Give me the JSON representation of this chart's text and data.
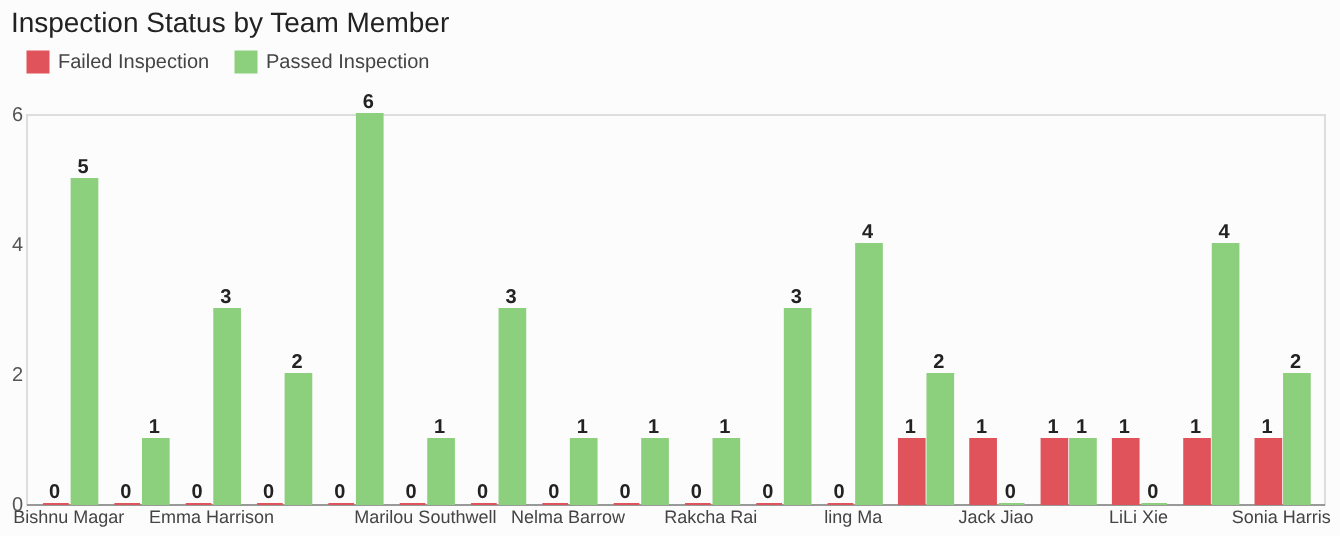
{
  "chart_data": {
    "type": "bar",
    "title": "Inspection Status by Team Member",
    "categories": [
      "Bishnu Magar",
      null,
      "Emma Harrison",
      null,
      null,
      "Marilou Southwell",
      null,
      "Nelma Barrow",
      null,
      "Rakcha Rai",
      null,
      "ling Ma",
      null,
      "Jack Jiao",
      null,
      "LiLi Xie",
      null,
      "Sonia Harris"
    ],
    "series": [
      {
        "name": "Failed Inspection",
        "color": "#e0535b",
        "values": [
          0,
          0,
          0,
          0,
          0,
          0,
          0,
          0,
          0,
          0,
          0,
          0,
          1,
          1,
          1,
          1,
          1,
          1
        ]
      },
      {
        "name": "Passed Inspection",
        "color": "#8ccf7c",
        "values": [
          5,
          1,
          3,
          2,
          6,
          1,
          3,
          1,
          1,
          1,
          3,
          4,
          2,
          0,
          1,
          0,
          4,
          2
        ]
      }
    ],
    "ylim": [
      0,
      6
    ],
    "yticks": [
      0,
      2,
      4,
      6
    ],
    "grid": false,
    "legend": "top",
    "data_labels": true
  }
}
